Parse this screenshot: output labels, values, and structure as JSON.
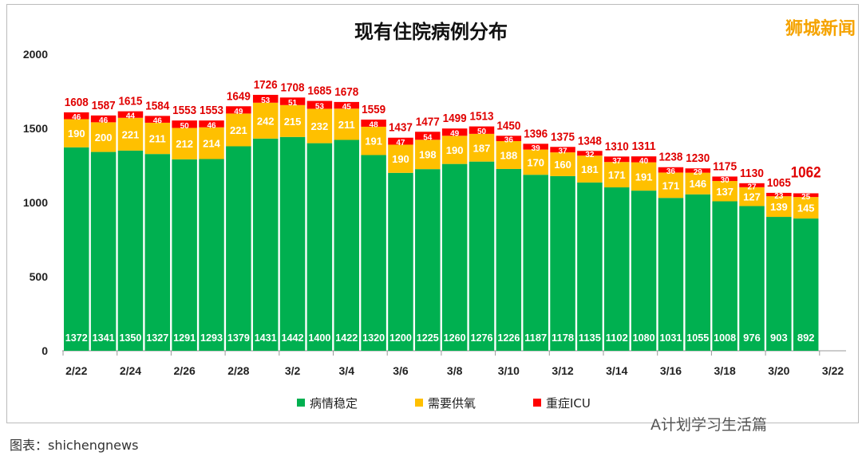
{
  "watermark": "狮城新闻",
  "footer": "图表：shichengnews",
  "wechat": "A计划学习生活篇",
  "chart_data": {
    "type": "bar",
    "stacked": true,
    "title": "现有住院病例分布",
    "ylim": [
      0,
      2000
    ],
    "yticks": [
      0,
      500,
      1000,
      1500,
      2000
    ],
    "xtick_labels": [
      "2/22",
      "2/24",
      "2/26",
      "2/28",
      "3/2",
      "3/4",
      "3/6",
      "3/8",
      "3/10",
      "3/12",
      "3/14",
      "3/16",
      "3/18",
      "3/20",
      "3/22"
    ],
    "categories": [
      "2/22",
      "2/23",
      "2/24",
      "2/25",
      "2/26",
      "2/27",
      "2/28",
      "3/1",
      "3/2",
      "3/3",
      "3/4",
      "3/5",
      "3/6",
      "3/7",
      "3/8",
      "3/9",
      "3/10",
      "3/11",
      "3/12",
      "3/13",
      "3/14",
      "3/15",
      "3/16",
      "3/17",
      "3/18",
      "3/19",
      "3/20",
      "3/21"
    ],
    "series": [
      {
        "name": "病情稳定",
        "color": "#00b050",
        "values": [
          1372,
          1341,
          1350,
          1327,
          1291,
          1293,
          1379,
          1431,
          1442,
          1400,
          1422,
          1320,
          1200,
          1225,
          1260,
          1276,
          1226,
          1187,
          1178,
          1135,
          1102,
          1080,
          1031,
          1055,
          1008,
          976,
          903,
          892
        ]
      },
      {
        "name": "需要供氧",
        "color": "#ffc000",
        "values": [
          190,
          200,
          221,
          211,
          212,
          214,
          221,
          242,
          215,
          232,
          211,
          191,
          190,
          198,
          190,
          187,
          188,
          170,
          160,
          181,
          171,
          191,
          171,
          146,
          137,
          127,
          139,
          145
        ]
      },
      {
        "name": "重症ICU",
        "color": "#ff0000",
        "values": [
          46,
          46,
          44,
          46,
          50,
          46,
          49,
          53,
          51,
          53,
          45,
          48,
          47,
          54,
          49,
          50,
          36,
          39,
          37,
          32,
          37,
          40,
          36,
          29,
          30,
          27,
          23,
          25
        ]
      }
    ],
    "totals": [
      1608,
      1587,
      1615,
      1584,
      1553,
      1553,
      1649,
      1726,
      1708,
      1685,
      1678,
      1559,
      1437,
      1477,
      1499,
      1513,
      1450,
      1396,
      1375,
      1348,
      1310,
      1311,
      1238,
      1230,
      1175,
      1130,
      1065,
      1062
    ],
    "legend": "bottom",
    "grid": false
  }
}
